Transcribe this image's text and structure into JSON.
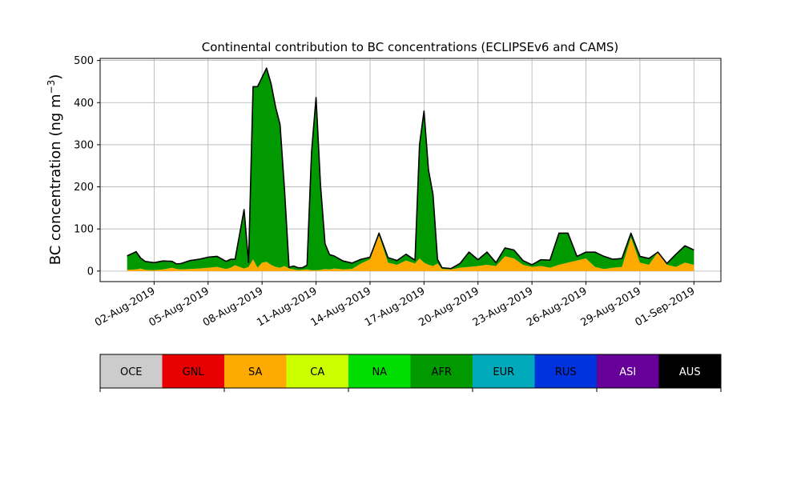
{
  "chart_data": {
    "type": "area",
    "stacked": true,
    "title": "Continental contribution to BC concentrations (ECLIPSEv6 and CAMS)",
    "ylabel": "BC concentration (ng m",
    "ylabel_unit_superscript": "−3",
    "ylabel_close": ")",
    "ylim": [
      -25,
      505
    ],
    "yticks": [
      0,
      100,
      200,
      300,
      400,
      500
    ],
    "xlim": [
      "2019-07-30",
      "2019-09-02 12:00"
    ],
    "xticks": [
      "02-Aug-2019",
      "05-Aug-2019",
      "08-Aug-2019",
      "11-Aug-2019",
      "14-Aug-2019",
      "17-Aug-2019",
      "20-Aug-2019",
      "23-Aug-2019",
      "26-Aug-2019",
      "29-Aug-2019",
      "01-Sep-2019"
    ],
    "xtick_dates": [
      "2019-08-02",
      "2019-08-05",
      "2019-08-08",
      "2019-08-11",
      "2019-08-14",
      "2019-08-17",
      "2019-08-20",
      "2019-08-23",
      "2019-08-26",
      "2019-08-29",
      "2019-09-01"
    ],
    "grid": true,
    "x": [
      "2019-07-31 12:00",
      "2019-08-01 00:00",
      "2019-08-01 06:00",
      "2019-08-01 12:00",
      "2019-08-02 00:00",
      "2019-08-02 12:00",
      "2019-08-03 00:00",
      "2019-08-03 06:00",
      "2019-08-03 12:00",
      "2019-08-04 00:00",
      "2019-08-04 12:00",
      "2019-08-05 00:00",
      "2019-08-05 12:00",
      "2019-08-06 00:00",
      "2019-08-06 06:00",
      "2019-08-06 12:00",
      "2019-08-07 00:00",
      "2019-08-07 06:00",
      "2019-08-07 12:00",
      "2019-08-07 18:00",
      "2019-08-08 00:00",
      "2019-08-08 06:00",
      "2019-08-08 12:00",
      "2019-08-08 18:00",
      "2019-08-09 00:00",
      "2019-08-09 06:00",
      "2019-08-09 12:00",
      "2019-08-09 18:00",
      "2019-08-10 00:00",
      "2019-08-10 06:00",
      "2019-08-10 12:00",
      "2019-08-10 18:00",
      "2019-08-11 00:00",
      "2019-08-11 06:00",
      "2019-08-11 12:00",
      "2019-08-11 18:00",
      "2019-08-12 00:00",
      "2019-08-12 12:00",
      "2019-08-13 00:00",
      "2019-08-13 12:00",
      "2019-08-14 00:00",
      "2019-08-14 12:00",
      "2019-08-15 00:00",
      "2019-08-15 12:00",
      "2019-08-16 00:00",
      "2019-08-16 12:00",
      "2019-08-16 18:00",
      "2019-08-17 00:00",
      "2019-08-17 06:00",
      "2019-08-17 12:00",
      "2019-08-17 18:00",
      "2019-08-18 00:00",
      "2019-08-18 12:00",
      "2019-08-19 00:00",
      "2019-08-19 12:00",
      "2019-08-20 00:00",
      "2019-08-20 12:00",
      "2019-08-21 00:00",
      "2019-08-21 12:00",
      "2019-08-22 00:00",
      "2019-08-22 12:00",
      "2019-08-23 00:00",
      "2019-08-23 12:00",
      "2019-08-24 00:00",
      "2019-08-24 12:00",
      "2019-08-25 00:00",
      "2019-08-25 12:00",
      "2019-08-26 00:00",
      "2019-08-26 12:00",
      "2019-08-27 00:00",
      "2019-08-27 12:00",
      "2019-08-28 00:00",
      "2019-08-28 12:00",
      "2019-08-29 00:00",
      "2019-08-29 12:00",
      "2019-08-30 00:00",
      "2019-08-30 12:00",
      "2019-08-31 00:00",
      "2019-08-31 12:00",
      "2019-09-01 00:00"
    ],
    "series": [
      {
        "name": "SA",
        "color": "#ffaa00",
        "values": [
          3,
          4,
          6,
          3,
          2,
          4,
          8,
          5,
          4,
          5,
          6,
          8,
          10,
          5,
          8,
          14,
          6,
          10,
          28,
          8,
          20,
          22,
          15,
          10,
          8,
          12,
          6,
          4,
          2,
          3,
          4,
          2,
          2,
          3,
          5,
          4,
          6,
          4,
          5,
          18,
          28,
          85,
          20,
          15,
          25,
          18,
          30,
          20,
          15,
          12,
          18,
          5,
          4,
          8,
          10,
          12,
          15,
          12,
          35,
          30,
          15,
          10,
          12,
          8,
          15,
          20,
          25,
          30,
          10,
          5,
          8,
          10,
          80,
          20,
          15,
          45,
          15,
          10,
          20,
          15
        ]
      },
      {
        "name": "AFR",
        "color": "#009900",
        "values": [
          33,
          42,
          25,
          20,
          18,
          20,
          15,
          12,
          14,
          20,
          22,
          25,
          25,
          18,
          20,
          14,
          140,
          10,
          410,
          430,
          440,
          460,
          430,
          380,
          340,
          180,
          3,
          8,
          6,
          5,
          10,
          280,
          410,
          200,
          60,
          35,
          30,
          20,
          14,
          10,
          5,
          5,
          12,
          10,
          15,
          8,
          270,
          360,
          225,
          170,
          10,
          3,
          2,
          10,
          35,
          15,
          30,
          8,
          20,
          20,
          10,
          5,
          15,
          18,
          75,
          70,
          10,
          15,
          35,
          30,
          20,
          20,
          10,
          15,
          15,
          0,
          3,
          30,
          40,
          35
        ]
      }
    ],
    "total_color": "#000000",
    "legend": {
      "placement": "below",
      "entries": [
        {
          "name": "OCE",
          "color": "#cccccc",
          "text_color": "#000000"
        },
        {
          "name": "GNL",
          "color": "#e80000",
          "text_color": "#000000"
        },
        {
          "name": "SA",
          "color": "#ffaa00",
          "text_color": "#000000"
        },
        {
          "name": "CA",
          "color": "#ccff00",
          "text_color": "#000000"
        },
        {
          "name": "NA",
          "color": "#00dd00",
          "text_color": "#000000"
        },
        {
          "name": "AFR",
          "color": "#009900",
          "text_color": "#000000"
        },
        {
          "name": "EUR",
          "color": "#00aabb",
          "text_color": "#000000"
        },
        {
          "name": "RUS",
          "color": "#0033dd",
          "text_color": "#000000"
        },
        {
          "name": "ASI",
          "color": "#660099",
          "text_color": "#ffffff"
        },
        {
          "name": "AUS",
          "color": "#000000",
          "text_color": "#ffffff"
        }
      ]
    }
  }
}
